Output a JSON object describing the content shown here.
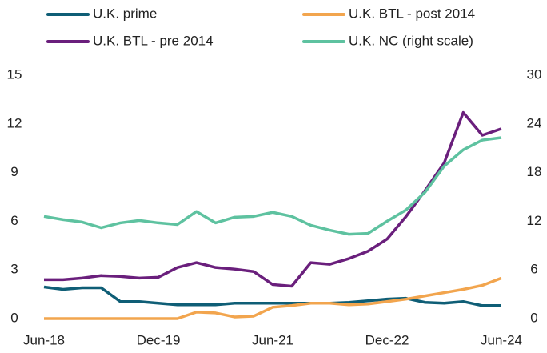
{
  "chart_data": {
    "type": "line",
    "categories": [
      "Jun-18",
      null,
      null,
      null,
      null,
      null,
      "Dec-19",
      null,
      null,
      null,
      null,
      null,
      "Jun-21",
      null,
      null,
      null,
      null,
      null,
      "Dec-22",
      null,
      null,
      null,
      null,
      null,
      "Jun-24"
    ],
    "series": [
      {
        "name": "U.K. prime",
        "color": "#0f5e76",
        "values": [
          1.95,
          1.8,
          1.9,
          1.9,
          1.05,
          1.05,
          0.95,
          0.85,
          0.85,
          0.85,
          0.95,
          0.95,
          0.95,
          0.95,
          0.95,
          0.95,
          1.0,
          1.1,
          1.2,
          1.25,
          1.0,
          0.95,
          1.05,
          0.8,
          0.8
        ]
      },
      {
        "name": "U.K. BTL - post 2014",
        "color": "#f2a54e",
        "values": [
          0,
          0,
          0,
          0,
          0,
          0,
          0,
          0,
          0.4,
          0.35,
          0.1,
          0.15,
          0.7,
          0.8,
          0.95,
          0.95,
          0.85,
          0.9,
          1.05,
          1.2,
          1.4,
          1.6,
          1.8,
          2.05,
          2.5
        ]
      },
      {
        "name": "U.K. BTL - pre 2014",
        "color": "#6a1f7c",
        "values": [
          2.4,
          2.4,
          2.5,
          2.65,
          2.6,
          2.5,
          2.55,
          3.15,
          3.45,
          3.15,
          3.05,
          2.9,
          2.1,
          2.0,
          3.45,
          3.35,
          3.7,
          4.15,
          4.9,
          6.3,
          7.9,
          9.6,
          12.7,
          11.3,
          11.7
        ]
      },
      {
        "name": "U.K. NC (right scale)",
        "color": "#5ec2a0",
        "axis": "y2",
        "values": [
          12.6,
          12.2,
          11.9,
          11.2,
          11.8,
          12.1,
          11.8,
          11.6,
          13.2,
          11.8,
          12.5,
          12.6,
          13.1,
          12.6,
          11.5,
          10.9,
          10.4,
          10.5,
          12.0,
          13.4,
          15.6,
          18.8,
          20.8,
          22.0,
          22.3
        ]
      }
    ],
    "ylim": [
      0,
      15
    ],
    "yticks": [
      0,
      3,
      6,
      9,
      12,
      15
    ],
    "y2lim": [
      0,
      30
    ],
    "y2ticks": [
      0,
      6,
      12,
      18,
      24,
      30
    ],
    "legend": "top"
  }
}
